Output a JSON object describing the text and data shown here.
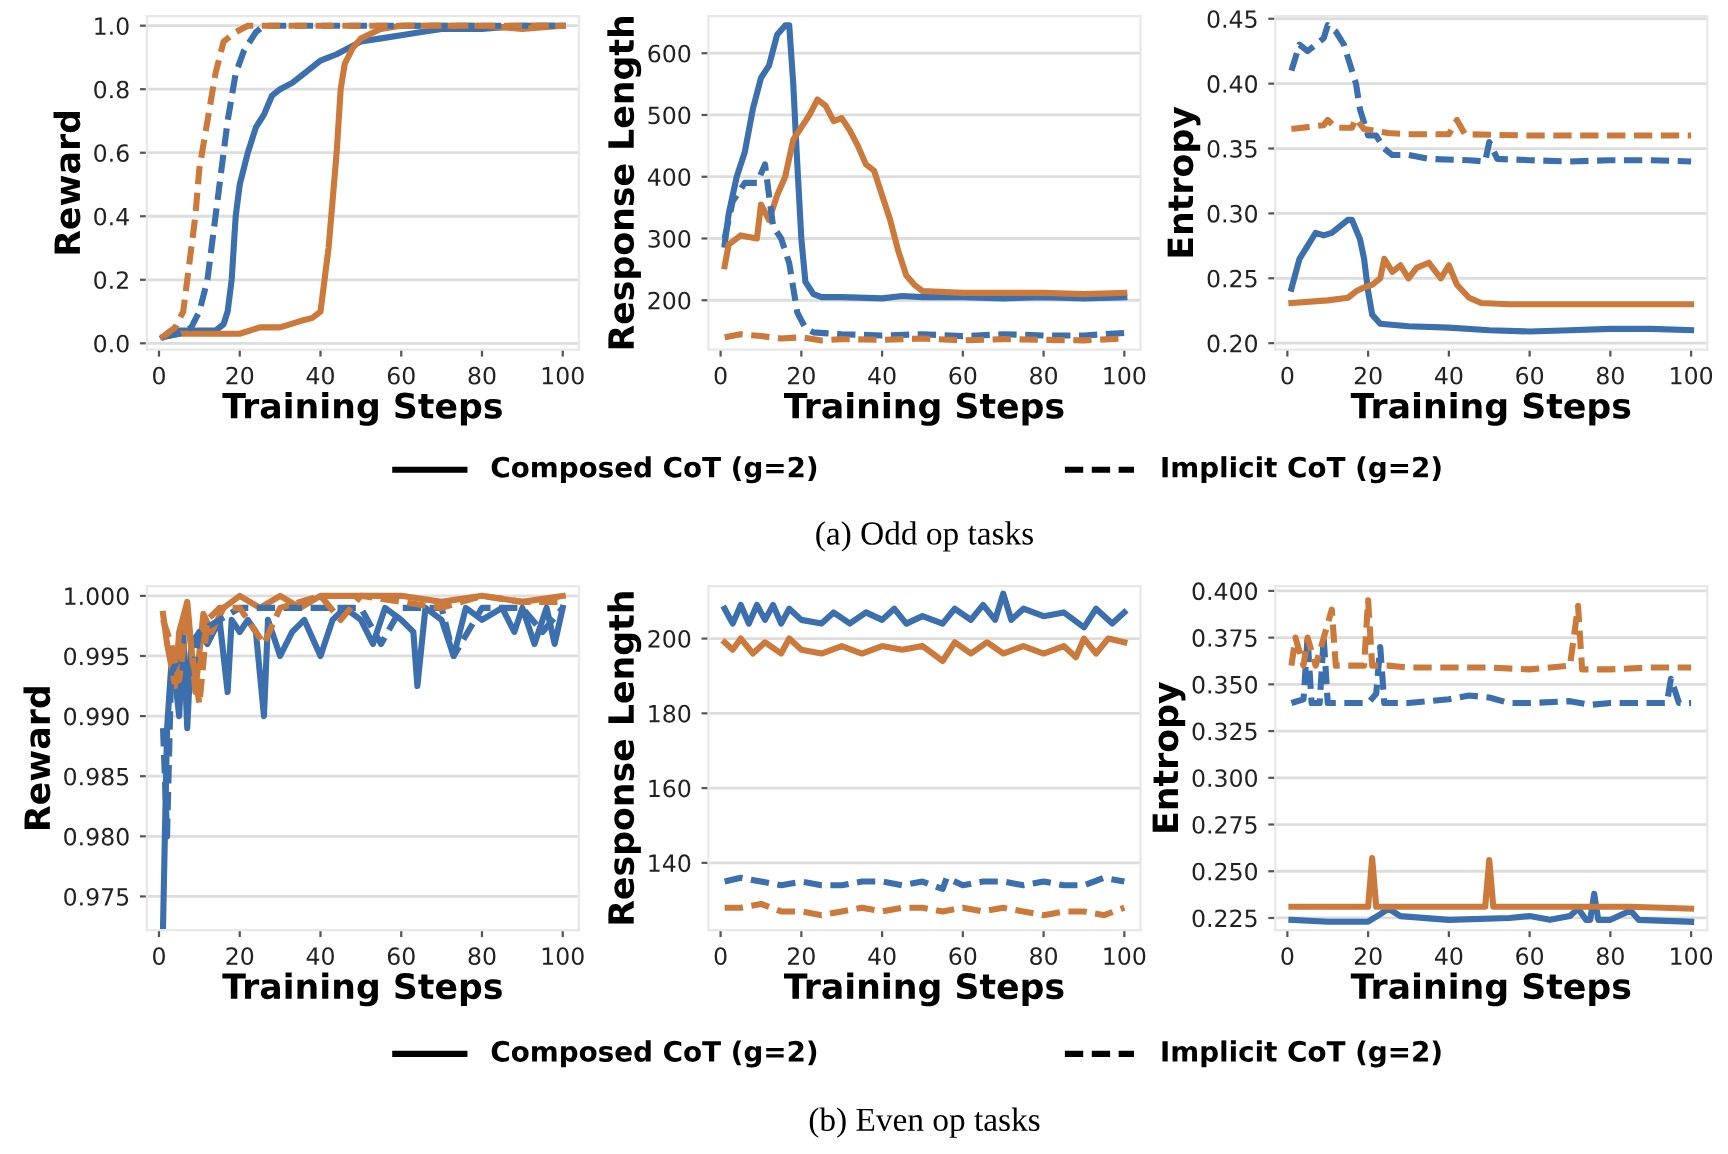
{
  "chart_data": [
    {
      "type": "line",
      "ylabel": "Reward",
      "xlabel": "Training Steps",
      "xlim": [
        -3,
        104
      ],
      "xticks": [
        0,
        20,
        40,
        60,
        80,
        100
      ],
      "ylim": [
        -0.02,
        1.03
      ],
      "yticks": [
        {
          "value": 0,
          "label": "0.0"
        },
        0.2,
        0.4,
        0.6,
        0.8,
        {
          "value": 1,
          "label": "1.0"
        }
      ],
      "grid": "y",
      "series": [
        {
          "color": "#3b6fad",
          "line_style": "solid",
          "x": [
            1,
            3,
            6,
            10,
            14,
            16,
            17,
            18,
            19,
            20,
            22,
            24,
            26,
            28,
            30,
            33,
            36,
            40,
            44,
            47,
            50,
            55,
            60,
            65,
            70,
            80,
            90,
            100
          ],
          "values": [
            0.02,
            0.04,
            0.04,
            0.04,
            0.04,
            0.06,
            0.1,
            0.2,
            0.4,
            0.5,
            0.6,
            0.68,
            0.72,
            0.78,
            0.8,
            0.82,
            0.85,
            0.89,
            0.91,
            0.93,
            0.95,
            0.96,
            0.97,
            0.98,
            0.99,
            0.99,
            1.0,
            1.0
          ]
        },
        {
          "color": "#cc7a3b",
          "line_style": "solid",
          "x": [
            1,
            5,
            10,
            15,
            20,
            25,
            30,
            35,
            38,
            40,
            41,
            42,
            43,
            44,
            45,
            46,
            48,
            50,
            55,
            60,
            70,
            80,
            90,
            100
          ],
          "values": [
            0.02,
            0.03,
            0.03,
            0.03,
            0.03,
            0.05,
            0.05,
            0.07,
            0.08,
            0.1,
            0.2,
            0.3,
            0.45,
            0.6,
            0.8,
            0.88,
            0.93,
            0.96,
            0.99,
            1.0,
            1.0,
            1.0,
            0.99,
            1.0
          ]
        },
        {
          "color": "#3b6fad",
          "line_style": "dashed",
          "x": [
            1,
            5,
            8,
            10,
            12,
            14,
            15,
            17,
            19,
            21,
            24,
            26,
            35,
            50,
            70,
            100
          ],
          "values": [
            0.02,
            0.03,
            0.05,
            0.1,
            0.2,
            0.4,
            0.5,
            0.7,
            0.85,
            0.92,
            0.98,
            1.0,
            1.0,
            1.0,
            1.0,
            1.0
          ]
        },
        {
          "color": "#cc7a3b",
          "line_style": "dashed",
          "x": [
            1,
            4,
            6,
            7,
            9,
            10,
            12,
            14,
            16,
            19,
            22,
            30,
            50,
            70,
            100
          ],
          "values": [
            0.02,
            0.05,
            0.1,
            0.2,
            0.4,
            0.55,
            0.7,
            0.85,
            0.95,
            0.98,
            1.0,
            1.0,
            1.0,
            1.0,
            1.0
          ]
        }
      ]
    },
    {
      "type": "line",
      "ylabel": "Response Length",
      "xlabel": "Training Steps",
      "xlim": [
        -3,
        104
      ],
      "xticks": [
        0,
        20,
        40,
        60,
        80,
        100
      ],
      "ylim": [
        120,
        660
      ],
      "yticks": [
        200,
        300,
        400,
        500,
        600
      ],
      "grid": "y",
      "annotations": [
        "Composed CoT (g=2)",
        "Implicit CoT (g=2)",
        "(a) Odd op tasks"
      ],
      "series": [
        {
          "color": "#3b6fad",
          "line_style": "solid",
          "x": [
            1,
            2,
            4,
            6,
            8,
            10,
            12,
            14,
            16,
            17,
            18,
            19,
            20,
            21,
            23,
            25,
            30,
            40,
            45,
            50,
            60,
            70,
            80,
            90,
            100
          ],
          "values": [
            290,
            340,
            400,
            440,
            510,
            560,
            580,
            630,
            645,
            645,
            550,
            420,
            300,
            230,
            210,
            205,
            205,
            203,
            207,
            205,
            205,
            203,
            205,
            203,
            205
          ]
        },
        {
          "color": "#cc7a3b",
          "line_style": "solid",
          "x": [
            1,
            2,
            5,
            9,
            10,
            12,
            14,
            16,
            18,
            20,
            22,
            24,
            26,
            28,
            30,
            32,
            34,
            36,
            38,
            40,
            42,
            44,
            46,
            48,
            50,
            60,
            70,
            80,
            90,
            100
          ],
          "values": [
            255,
            290,
            305,
            300,
            355,
            330,
            370,
            400,
            460,
            480,
            500,
            525,
            515,
            490,
            495,
            475,
            450,
            420,
            410,
            370,
            330,
            280,
            240,
            225,
            215,
            212,
            212,
            212,
            210,
            212
          ]
        },
        {
          "color": "#3b6fad",
          "line_style": "dashed",
          "x": [
            1,
            3,
            6,
            9,
            11,
            13,
            15,
            17,
            19,
            21,
            23,
            30,
            40,
            50,
            60,
            70,
            80,
            90,
            100
          ],
          "values": [
            300,
            360,
            390,
            390,
            420,
            320,
            300,
            260,
            180,
            155,
            148,
            145,
            143,
            145,
            142,
            145,
            143,
            143,
            147
          ]
        },
        {
          "color": "#cc7a3b",
          "line_style": "dashed",
          "x": [
            1,
            5,
            10,
            15,
            20,
            25,
            30,
            40,
            50,
            60,
            70,
            80,
            90,
            100
          ],
          "values": [
            140,
            145,
            142,
            138,
            140,
            135,
            137,
            136,
            138,
            135,
            137,
            136,
            135,
            138
          ]
        }
      ]
    },
    {
      "type": "line",
      "ylabel": "Entropy",
      "xlabel": "Training Steps",
      "xlim": [
        -3,
        104
      ],
      "xticks": [
        0,
        20,
        40,
        60,
        80,
        100
      ],
      "ylim": [
        0.195,
        0.452
      ],
      "yticks": [
        {
          "value": 0.2,
          "label": "0.20"
        },
        0.25,
        {
          "value": 0.3,
          "label": "0.30"
        },
        0.35,
        {
          "value": 0.4,
          "label": "0.40"
        },
        0.45
      ],
      "grid": "y",
      "series": [
        {
          "color": "#3b6fad",
          "line_style": "solid",
          "x": [
            1,
            3,
            5,
            7,
            9,
            11,
            13,
            15,
            16,
            18,
            19,
            20,
            21,
            23,
            30,
            40,
            50,
            60,
            70,
            80,
            90,
            100
          ],
          "values": [
            0.242,
            0.265,
            0.275,
            0.285,
            0.283,
            0.285,
            0.29,
            0.295,
            0.295,
            0.28,
            0.265,
            0.24,
            0.222,
            0.215,
            0.213,
            0.212,
            0.21,
            0.209,
            0.21,
            0.211,
            0.211,
            0.21
          ]
        },
        {
          "color": "#cc7a3b",
          "line_style": "solid",
          "x": [
            1,
            10,
            15,
            17,
            19,
            21,
            23,
            24,
            26,
            28,
            30,
            32,
            35,
            38,
            40,
            42,
            45,
            48,
            55,
            70,
            85,
            100
          ],
          "values": [
            0.231,
            0.233,
            0.235,
            0.24,
            0.243,
            0.245,
            0.25,
            0.265,
            0.255,
            0.26,
            0.25,
            0.258,
            0.262,
            0.25,
            0.26,
            0.245,
            0.235,
            0.231,
            0.23,
            0.23,
            0.23,
            0.23
          ]
        },
        {
          "color": "#3b6fad",
          "line_style": "dashed",
          "x": [
            1,
            3,
            5,
            7,
            9,
            10,
            12,
            14,
            16,
            17,
            18,
            20,
            22,
            24,
            26,
            30,
            35,
            45,
            49,
            50,
            52,
            60,
            70,
            80,
            90,
            100
          ],
          "values": [
            0.41,
            0.43,
            0.425,
            0.43,
            0.435,
            0.445,
            0.44,
            0.43,
            0.41,
            0.4,
            0.38,
            0.36,
            0.36,
            0.35,
            0.345,
            0.345,
            0.342,
            0.341,
            0.34,
            0.355,
            0.342,
            0.341,
            0.34,
            0.341,
            0.341,
            0.34
          ]
        },
        {
          "color": "#cc7a3b",
          "line_style": "dashed",
          "x": [
            1,
            9,
            10,
            12,
            16,
            17,
            19,
            25,
            30,
            40,
            42,
            44,
            60,
            80,
            100
          ],
          "values": [
            0.365,
            0.368,
            0.372,
            0.366,
            0.366,
            0.373,
            0.365,
            0.362,
            0.361,
            0.361,
            0.372,
            0.361,
            0.36,
            0.36,
            0.36
          ]
        }
      ]
    },
    {
      "type": "line",
      "ylabel": "Reward",
      "xlabel": "Training Steps",
      "xlim": [
        -3,
        104
      ],
      "xticks": [
        0,
        20,
        40,
        60,
        80,
        100
      ],
      "ylim": [
        0.9722,
        1.0008
      ],
      "yticks": [
        0.975,
        {
          "value": 0.98,
          "label": "0.980"
        },
        0.985,
        {
          "value": 0.99,
          "label": "0.990"
        },
        0.995,
        {
          "value": 1.0,
          "label": "1.000"
        }
      ],
      "grid": "y",
      "series": [
        {
          "color": "#3b6fad",
          "line_style": "solid",
          "x": [
            1,
            2,
            3,
            4,
            5,
            6,
            7,
            8,
            10,
            12,
            15,
            17,
            18,
            20,
            22,
            24,
            26,
            27,
            30,
            33,
            36,
            40,
            43,
            46,
            50,
            53,
            56,
            60,
            63,
            64,
            66,
            70,
            73,
            76,
            80,
            85,
            88,
            90,
            93,
            96,
            98,
            100
          ],
          "values": [
            0.9725,
            0.989,
            0.994,
            0.993,
            0.99,
            0.997,
            0.989,
            0.996,
            0.997,
            0.996,
            0.998,
            0.992,
            0.998,
            0.997,
            0.998,
            0.997,
            0.99,
            0.998,
            0.995,
            0.997,
            0.998,
            0.995,
            0.998,
            0.999,
            0.998,
            0.996,
            0.999,
            0.998,
            0.997,
            0.9925,
            0.999,
            0.998,
            0.995,
            0.999,
            0.998,
            0.999,
            0.997,
            0.999,
            0.996,
            0.999,
            0.996,
            0.999
          ]
        },
        {
          "color": "#cc7a3b",
          "line_style": "solid",
          "x": [
            1,
            2,
            4,
            5,
            7,
            9,
            11,
            13,
            16,
            20,
            25,
            30,
            35,
            40,
            50,
            60,
            70,
            80,
            90,
            100
          ],
          "values": [
            0.9985,
            0.996,
            0.9925,
            0.997,
            0.9995,
            0.992,
            0.9985,
            0.997,
            0.999,
            1.0,
            0.999,
            1.0,
            0.999,
            1.0,
            1.0,
            1.0,
            0.9995,
            1.0,
            0.9995,
            1.0
          ]
        },
        {
          "color": "#3b6fad",
          "line_style": "dashed",
          "x": [
            1,
            2,
            3,
            5,
            8,
            10,
            15,
            20,
            30,
            40,
            50,
            55,
            60,
            70,
            73,
            80,
            90,
            95,
            100
          ],
          "values": [
            0.989,
            0.98,
            0.9935,
            0.995,
            0.993,
            0.997,
            0.998,
            0.999,
            0.999,
            0.999,
            0.999,
            0.996,
            0.999,
            0.999,
            0.995,
            0.999,
            0.999,
            0.997,
            0.999
          ]
        },
        {
          "color": "#cc7a3b",
          "line_style": "dashed",
          "x": [
            1,
            3,
            5,
            7,
            10,
            12,
            15,
            20,
            26,
            30,
            40,
            45,
            50,
            60,
            70,
            80,
            90,
            100
          ],
          "values": [
            0.998,
            0.996,
            0.993,
            0.998,
            0.991,
            0.998,
            0.999,
            0.999,
            0.996,
            0.999,
            1.0,
            0.998,
            1.0,
            0.9995,
            0.999,
            1.0,
            0.9995,
            0.9995
          ]
        }
      ]
    },
    {
      "type": "line",
      "ylabel": "Response Length",
      "xlabel": "Training Steps",
      "xlim": [
        -3,
        104
      ],
      "xticks": [
        0,
        20,
        40,
        60,
        80,
        100
      ],
      "ylim": [
        122,
        214
      ],
      "yticks": [
        140,
        160,
        180,
        200
      ],
      "grid": "y",
      "annotations": [
        "Composed CoT (g=2)",
        "Implicit CoT (g=2)",
        "(b) Even op tasks"
      ],
      "series": [
        {
          "color": "#3b6fad",
          "line_style": "solid",
          "x": [
            1,
            3,
            5,
            7,
            9,
            11,
            13,
            15,
            17,
            20,
            25,
            28,
            32,
            36,
            40,
            43,
            46,
            50,
            55,
            58,
            62,
            65,
            68,
            70,
            72,
            75,
            80,
            85,
            90,
            93,
            97,
            100
          ],
          "values": [
            208,
            204,
            209,
            204,
            209,
            205,
            209,
            204,
            208,
            205,
            204,
            207,
            204,
            207,
            205,
            208,
            204,
            206,
            204,
            208,
            205,
            209,
            205,
            212,
            205,
            208,
            206,
            207,
            203,
            208,
            204,
            207
          ]
        },
        {
          "color": "#cc7a3b",
          "line_style": "solid",
          "x": [
            1,
            3,
            5,
            8,
            11,
            15,
            17,
            20,
            25,
            30,
            35,
            40,
            45,
            50,
            55,
            58,
            62,
            66,
            70,
            75,
            80,
            85,
            88,
            90,
            93,
            96,
            100
          ],
          "values": [
            199,
            197,
            200,
            196,
            199,
            196,
            200,
            197,
            196,
            198,
            196,
            198,
            197,
            198,
            194,
            199,
            196,
            199,
            196,
            198,
            196,
            198,
            195,
            200,
            196,
            200,
            199
          ]
        },
        {
          "color": "#3b6fad",
          "line_style": "dashed",
          "x": [
            1,
            5,
            10,
            15,
            20,
            25,
            30,
            35,
            40,
            45,
            50,
            55,
            56,
            60,
            65,
            70,
            75,
            80,
            85,
            90,
            95,
            100
          ],
          "values": [
            135,
            136,
            135,
            134,
            135,
            134,
            134,
            135,
            135,
            134,
            135,
            133,
            136,
            134,
            135,
            135,
            134,
            135,
            134,
            134,
            136,
            135
          ]
        },
        {
          "color": "#cc7a3b",
          "line_style": "dashed",
          "x": [
            1,
            5,
            10,
            15,
            20,
            25,
            30,
            35,
            40,
            45,
            50,
            55,
            60,
            65,
            70,
            75,
            80,
            85,
            90,
            95,
            100
          ],
          "values": [
            128,
            128,
            129,
            127,
            127,
            126,
            127,
            128,
            127,
            128,
            128,
            127,
            128,
            127,
            128,
            127,
            126,
            127,
            127,
            126,
            128
          ]
        }
      ]
    },
    {
      "type": "line",
      "ylabel": "Entropy",
      "xlabel": "Training Steps",
      "xlim": [
        -3,
        104
      ],
      "xticks": [
        0,
        20,
        40,
        60,
        80,
        100
      ],
      "ylim": [
        0.2185,
        0.4025
      ],
      "yticks": [
        0.225,
        {
          "value": 0.25,
          "label": "0.250"
        },
        0.275,
        {
          "value": 0.3,
          "label": "0.300"
        },
        0.325,
        {
          "value": 0.35,
          "label": "0.350"
        },
        0.375,
        {
          "value": 0.4,
          "label": "0.400"
        }
      ],
      "grid": "y",
      "series": [
        {
          "color": "#3b6fad",
          "line_style": "solid",
          "x": [
            1,
            10,
            20,
            23,
            25,
            28,
            40,
            55,
            60,
            65,
            70,
            72,
            74,
            75,
            76,
            77,
            80,
            85,
            87,
            100
          ],
          "values": [
            0.224,
            0.223,
            0.223,
            0.227,
            0.23,
            0.226,
            0.224,
            0.225,
            0.226,
            0.224,
            0.226,
            0.23,
            0.224,
            0.224,
            0.238,
            0.224,
            0.224,
            0.229,
            0.224,
            0.223
          ]
        },
        {
          "color": "#cc7a3b",
          "line_style": "solid",
          "x": [
            1,
            20,
            21,
            22,
            49,
            50,
            51,
            70,
            85,
            100
          ],
          "values": [
            0.231,
            0.231,
            0.257,
            0.231,
            0.231,
            0.256,
            0.231,
            0.231,
            0.231,
            0.23
          ]
        },
        {
          "color": "#3b6fad",
          "line_style": "dashed",
          "x": [
            1,
            4,
            5,
            6,
            8,
            9,
            10,
            15,
            20,
            22,
            23,
            24,
            30,
            40,
            45,
            50,
            55,
            60,
            70,
            75,
            80,
            94,
            95,
            97,
            100
          ],
          "values": [
            0.34,
            0.342,
            0.375,
            0.34,
            0.34,
            0.375,
            0.34,
            0.34,
            0.34,
            0.345,
            0.37,
            0.34,
            0.34,
            0.342,
            0.344,
            0.343,
            0.34,
            0.34,
            0.341,
            0.339,
            0.34,
            0.34,
            0.353,
            0.34,
            0.34
          ]
        },
        {
          "color": "#cc7a3b",
          "line_style": "dashed",
          "x": [
            1,
            2,
            4,
            5,
            7,
            11,
            12,
            19,
            20,
            21,
            23,
            25,
            30,
            40,
            50,
            60,
            70,
            72,
            73,
            80,
            90,
            100
          ],
          "values": [
            0.36,
            0.375,
            0.36,
            0.375,
            0.36,
            0.39,
            0.36,
            0.36,
            0.395,
            0.36,
            0.36,
            0.36,
            0.359,
            0.359,
            0.359,
            0.358,
            0.36,
            0.392,
            0.358,
            0.358,
            0.359,
            0.359
          ]
        }
      ]
    }
  ]
}
